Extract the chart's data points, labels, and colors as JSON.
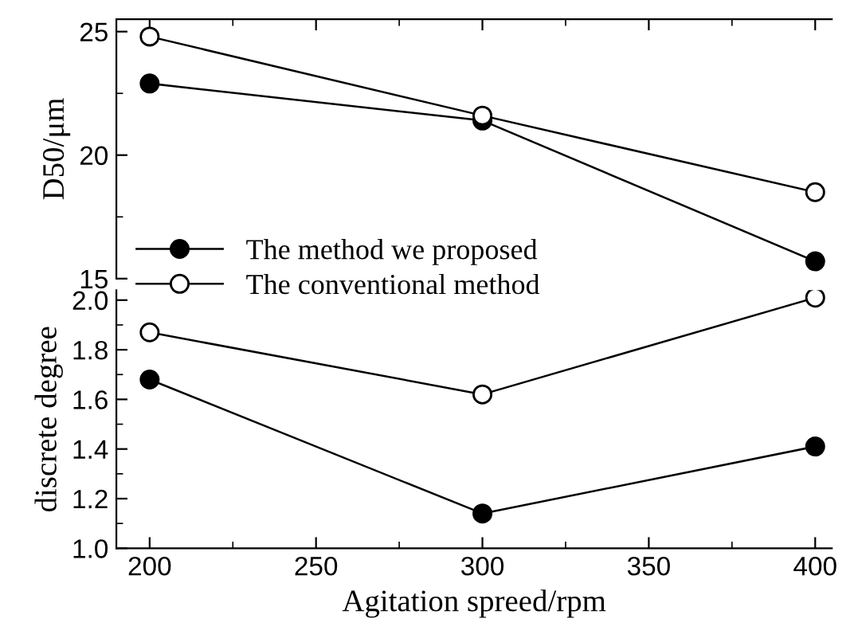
{
  "chart_data": [
    {
      "type": "line",
      "ylabel": "D50/μm",
      "x": [
        200,
        300,
        400
      ],
      "xlim": [
        190,
        405
      ],
      "xticks": [
        200,
        250,
        300,
        350,
        400
      ],
      "ylim": [
        15,
        25.5
      ],
      "yticks": [
        15,
        20,
        25
      ],
      "tick_labels": "y",
      "marker": "circle",
      "legend": "bottom left",
      "grid": false,
      "series": [
        {
          "name": "The method we proposed",
          "color": "#000000",
          "values": [
            22.9,
            21.4,
            15.7
          ]
        },
        {
          "name": "The conventional method",
          "color": "#ffffff",
          "values": [
            24.8,
            21.6,
            18.5
          ]
        }
      ]
    },
    {
      "type": "line",
      "ylabel": "discrete degree",
      "xlabel": "Agitation spreed/rpm",
      "x": [
        200,
        300,
        400
      ],
      "xlim": [
        190,
        405
      ],
      "xticks": [
        200,
        250,
        300,
        350,
        400
      ],
      "ylim": [
        1.0,
        2.04
      ],
      "yticks": [
        {
          "value": 1.0,
          "label": "1.0"
        },
        {
          "value": 1.2,
          "label": "1.2"
        },
        {
          "value": 1.4,
          "label": "1.4"
        },
        {
          "value": 1.6,
          "label": "1.6"
        },
        {
          "value": 1.8,
          "label": "1.8"
        },
        {
          "value": 2.0,
          "label": "2.0"
        }
      ],
      "marker": "circle",
      "grid": false,
      "series": [
        {
          "color": "#000000",
          "values": [
            1.68,
            1.14,
            1.41
          ]
        },
        {
          "color": "#ffffff",
          "values": [
            1.87,
            1.62,
            2.01
          ]
        }
      ]
    }
  ]
}
